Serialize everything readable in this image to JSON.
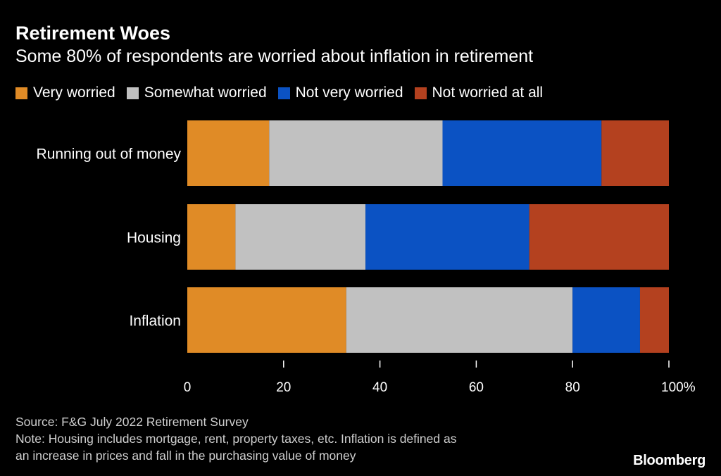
{
  "title": "Retirement Woes",
  "subtitle": "Some 80% of respondents are worried about inflation in retirement",
  "source": "Source: F&G July 2022 Retirement Survey",
  "note_line1": "Note: Housing includes mortgage, rent, property taxes, etc. Inflation is defined as",
  "note_line2": "an increase in prices and fall in the purchasing value of money",
  "brand": "Bloomberg",
  "chart_data": {
    "type": "bar",
    "orientation": "horizontal",
    "stacked": true,
    "categories": [
      "Running out of money",
      "Housing",
      "Inflation"
    ],
    "series": [
      {
        "name": "Very worried",
        "color": "#e08b26",
        "values": [
          17,
          10,
          33
        ]
      },
      {
        "name": "Somewhat worried",
        "color": "#c1c1c1",
        "values": [
          36,
          27,
          47
        ]
      },
      {
        "name": "Not very worried",
        "color": "#0b52c3",
        "values": [
          33,
          34,
          14
        ]
      },
      {
        "name": "Not worried at all",
        "color": "#b4411f",
        "values": [
          14,
          29,
          6
        ]
      }
    ],
    "xlim": [
      0,
      100
    ],
    "xticks": [
      "0",
      "20",
      "40",
      "60",
      "80",
      "100%"
    ],
    "legend_position": "top-left",
    "grid": false
  }
}
